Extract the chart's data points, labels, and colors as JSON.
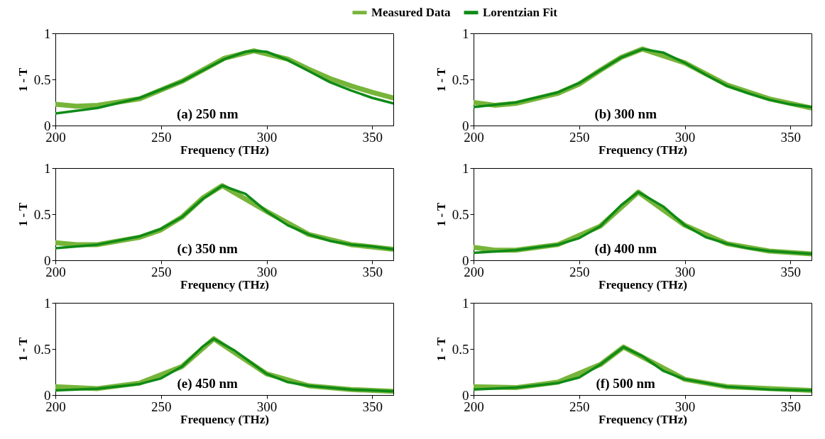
{
  "chart_data": [
    {
      "type": "line",
      "xlabel": "Frequency (THz)",
      "ylabel": "1 - T",
      "annotations": [
        "(a) 250 nm"
      ],
      "legend": "top",
      "xlim": [
        200,
        360
      ],
      "xticks": [
        200,
        250,
        300,
        350
      ],
      "ylim": [
        0,
        1
      ],
      "yticks": [
        0,
        0.5,
        1
      ],
      "series": [
        {
          "name": "Measured Data",
          "color": "#77b53a",
          "x": [
            200,
            210,
            220,
            240,
            260,
            280,
            294,
            310,
            320,
            330,
            340,
            350,
            360
          ],
          "values": [
            0.23,
            0.21,
            0.22,
            0.29,
            0.48,
            0.73,
            0.81,
            0.72,
            0.61,
            0.51,
            0.43,
            0.36,
            0.3
          ]
        },
        {
          "name": "Lorentzian Fit",
          "color": "#0e8a16",
          "x": [
            200,
            220,
            240,
            260,
            270,
            280,
            290,
            294,
            300,
            310,
            320,
            330,
            340,
            350,
            360
          ],
          "values": [
            0.13,
            0.19,
            0.3,
            0.48,
            0.6,
            0.72,
            0.8,
            0.81,
            0.8,
            0.71,
            0.59,
            0.47,
            0.38,
            0.3,
            0.24
          ]
        }
      ]
    },
    {
      "type": "line",
      "xlabel": "Frequency (THz)",
      "ylabel": "1 - T",
      "annotations": [
        "(b)  300 nm"
      ],
      "xlim": [
        200,
        360
      ],
      "xticks": [
        200,
        250,
        300,
        350
      ],
      "ylim": [
        0,
        1
      ],
      "yticks": [
        0,
        0.5,
        1
      ],
      "series": [
        {
          "color": "#77b53a",
          "x": [
            200,
            210,
            220,
            240,
            250,
            260,
            270,
            280,
            300,
            320,
            340,
            360
          ],
          "values": [
            0.25,
            0.22,
            0.24,
            0.35,
            0.45,
            0.6,
            0.74,
            0.83,
            0.68,
            0.44,
            0.29,
            0.19
          ]
        },
        {
          "color": "#0e8a16",
          "x": [
            200,
            220,
            240,
            250,
            260,
            270,
            280,
            290,
            300,
            310,
            320,
            330,
            340,
            350,
            360
          ],
          "values": [
            0.2,
            0.25,
            0.36,
            0.46,
            0.6,
            0.74,
            0.83,
            0.79,
            0.68,
            0.55,
            0.43,
            0.35,
            0.28,
            0.23,
            0.2
          ]
        }
      ]
    },
    {
      "type": "line",
      "xlabel": "Frequency (THz)",
      "ylabel": "1 - T",
      "annotations": [
        "(c) 350 nm"
      ],
      "xlim": [
        200,
        360
      ],
      "xticks": [
        200,
        250,
        300,
        350
      ],
      "ylim": [
        0,
        1
      ],
      "yticks": [
        0,
        0.5,
        1
      ],
      "series": [
        {
          "color": "#77b53a",
          "x": [
            200,
            210,
            220,
            240,
            250,
            260,
            270,
            279,
            300,
            320,
            340,
            360
          ],
          "values": [
            0.19,
            0.17,
            0.17,
            0.25,
            0.33,
            0.47,
            0.68,
            0.81,
            0.53,
            0.28,
            0.17,
            0.12
          ]
        },
        {
          "color": "#0e8a16",
          "x": [
            200,
            220,
            240,
            250,
            260,
            270,
            279,
            290,
            300,
            310,
            320,
            330,
            340,
            350,
            360
          ],
          "values": [
            0.13,
            0.17,
            0.26,
            0.34,
            0.47,
            0.67,
            0.81,
            0.72,
            0.53,
            0.38,
            0.28,
            0.21,
            0.17,
            0.15,
            0.12
          ]
        }
      ]
    },
    {
      "type": "line",
      "xlabel": "Frequency (THz)",
      "ylabel": "1 - T",
      "annotations": [
        "(d) 400 nm"
      ],
      "xlim": [
        200,
        360
      ],
      "xticks": [
        200,
        250,
        300,
        350
      ],
      "ylim": [
        0,
        1
      ],
      "yticks": [
        0,
        0.5,
        1
      ],
      "series": [
        {
          "color": "#77b53a",
          "x": [
            200,
            210,
            220,
            240,
            260,
            278,
            300,
            320,
            340,
            360
          ],
          "values": [
            0.14,
            0.11,
            0.11,
            0.17,
            0.37,
            0.74,
            0.38,
            0.18,
            0.1,
            0.07
          ]
        },
        {
          "color": "#0e8a16",
          "x": [
            200,
            220,
            240,
            250,
            260,
            270,
            278,
            290,
            300,
            310,
            320,
            330,
            340,
            360
          ],
          "values": [
            0.08,
            0.11,
            0.17,
            0.24,
            0.37,
            0.6,
            0.74,
            0.58,
            0.38,
            0.25,
            0.18,
            0.13,
            0.1,
            0.07
          ]
        }
      ]
    },
    {
      "type": "line",
      "xlabel": "Frequency (THz)",
      "ylabel": "1 - T",
      "annotations": [
        "(e) 450 nm"
      ],
      "xlim": [
        200,
        360
      ],
      "xticks": [
        200,
        250,
        300,
        350
      ],
      "ylim": [
        0,
        1
      ],
      "yticks": [
        0,
        0.5,
        1
      ],
      "series": [
        {
          "color": "#77b53a",
          "x": [
            200,
            220,
            240,
            260,
            275,
            300,
            320,
            340,
            360
          ],
          "values": [
            0.09,
            0.07,
            0.13,
            0.31,
            0.61,
            0.23,
            0.1,
            0.06,
            0.04
          ]
        },
        {
          "color": "#0e8a16",
          "x": [
            200,
            220,
            240,
            250,
            260,
            270,
            275,
            285,
            300,
            310,
            320,
            340,
            360
          ],
          "values": [
            0.05,
            0.07,
            0.12,
            0.18,
            0.31,
            0.53,
            0.61,
            0.48,
            0.23,
            0.14,
            0.1,
            0.06,
            0.04
          ]
        }
      ]
    },
    {
      "type": "line",
      "xlabel": "Frequency (THz)",
      "ylabel": "1 - T",
      "annotations": [
        "(f) 500 nm"
      ],
      "xlim": [
        200,
        360
      ],
      "xticks": [
        200,
        250,
        300,
        350
      ],
      "ylim": [
        0,
        1
      ],
      "yticks": [
        0,
        0.5,
        1
      ],
      "series": [
        {
          "color": "#77b53a",
          "x": [
            200,
            220,
            240,
            260,
            271,
            300,
            320,
            360
          ],
          "values": [
            0.09,
            0.08,
            0.14,
            0.33,
            0.52,
            0.17,
            0.09,
            0.05
          ]
        },
        {
          "color": "#0e8a16",
          "x": [
            200,
            220,
            240,
            250,
            260,
            271,
            280,
            290,
            300,
            320,
            340,
            360
          ],
          "values": [
            0.06,
            0.08,
            0.13,
            0.19,
            0.33,
            0.52,
            0.42,
            0.26,
            0.17,
            0.09,
            0.06,
            0.05
          ]
        }
      ]
    }
  ]
}
